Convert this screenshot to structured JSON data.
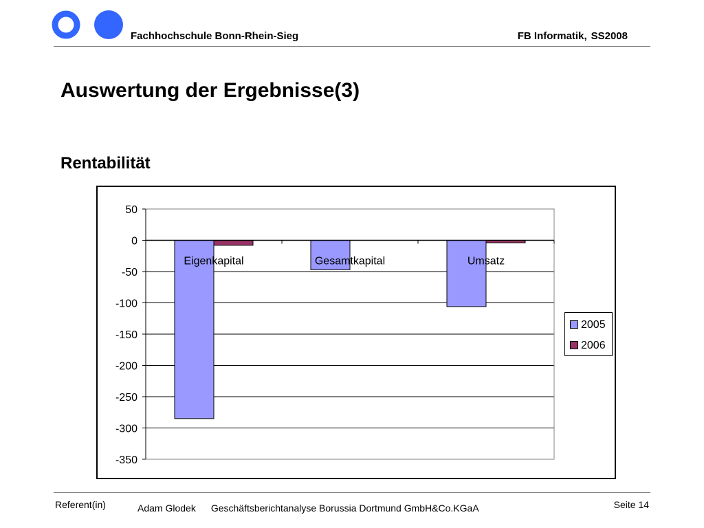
{
  "header": {
    "institution": "Fachhochschule Bonn-Rhein-Sieg",
    "department": "FB Informatik,",
    "term": "SS2008",
    "logo_icon": "two-circles-logo-icon",
    "accent_color": "#3366ff"
  },
  "slide": {
    "title": "Auswertung der Ergebnisse(3)",
    "subtitle": "Rentabilität"
  },
  "chart_data": {
    "type": "bar",
    "categories": [
      "Eigenkapital",
      "Gesamtkapital",
      "Umsatz"
    ],
    "series": [
      {
        "name": "2005",
        "values": [
          -285,
          -47,
          -106
        ],
        "color": "#9999ff"
      },
      {
        "name": "2006",
        "values": [
          -8,
          0,
          -4
        ],
        "color": "#993366"
      }
    ],
    "ylim": [
      -350,
      50
    ],
    "yticks": [
      "50",
      "0",
      "-50",
      "-100",
      "-150",
      "-200",
      "-250",
      "-300",
      "-350"
    ],
    "grid": true,
    "legend_position": "right"
  },
  "footer": {
    "referent_label": "Referent(in)",
    "presenter": "Adam Glodek",
    "topic": "Geschäftsberichtanalyse Borussia Dortmund GmbH&Co.KGaA",
    "page": "Seite 14"
  }
}
